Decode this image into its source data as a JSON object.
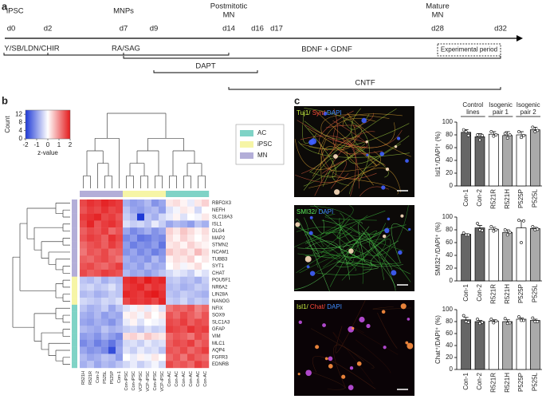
{
  "panel_labels": [
    "a",
    "b",
    "c"
  ],
  "timeline": {
    "stages": [
      [
        "iPSC"
      ],
      [
        "MNPs"
      ],
      [
        "Postmitotic",
        "MN"
      ],
      [
        "Mature",
        "MN"
      ]
    ],
    "days": [
      "d0",
      "d2",
      "d7",
      "d9",
      "d14",
      "d16",
      "d17",
      "d28",
      "d32"
    ],
    "treatments": [
      "Y/SB/LDN/CHIR",
      "RA/SAG",
      "BDNF + GDNF",
      "DAPT",
      "CNTF"
    ],
    "experimental_period": "Experimental period"
  },
  "micrographs": [
    [
      {
        "text": "Tuj1/",
        "color": "#c8f040"
      },
      {
        "text": " Syn/",
        "color": "#ff4a3a"
      },
      {
        "text": " DAPI",
        "color": "#3f8cff"
      }
    ],
    [
      {
        "text": "SMI32/",
        "color": "#5cf05c"
      },
      {
        "text": " DAPI",
        "color": "#3f8cff"
      }
    ],
    [
      {
        "text": "Isl1/",
        "color": "#c8f040"
      },
      {
        "text": " Chat/",
        "color": "#ff4a3a"
      },
      {
        "text": " DAPI",
        "color": "#3f8cff"
      }
    ]
  ],
  "chart_data": [
    {
      "type": "heatmap",
      "ylabel": "Count",
      "xlabel": "z-value",
      "zlim": [
        -2,
        2
      ],
      "xticks": [
        -2,
        -1,
        0,
        1,
        2
      ],
      "countlim": [
        0,
        14
      ],
      "yticks": [
        0,
        4,
        8,
        12
      ],
      "colormap": [
        "#1f3ad6",
        "#ffffff",
        "#e41a1c"
      ],
      "groups": [
        {
          "name": "AC",
          "color": "#7fd3c6"
        },
        {
          "name": "iPSC",
          "color": "#f6f5a6"
        },
        {
          "name": "MN",
          "color": "#b3aed8"
        }
      ],
      "columns": [
        "R521H",
        "R521R",
        "Con-2",
        "P525L",
        "P525P",
        "Con-1",
        "Con-iPSC",
        "Con-iPSC",
        "VCP-iPSC",
        "VCP-iPSC",
        "Con-iPSC",
        "VCP-iPSC",
        "Con-AC",
        "Con-AC",
        "Con-AC",
        "Con-AC",
        "Con-AC",
        "Con-AC"
      ],
      "column_groups": [
        "MN",
        "MN",
        "MN",
        "MN",
        "MN",
        "MN",
        "iPSC",
        "iPSC",
        "iPSC",
        "iPSC",
        "iPSC",
        "iPSC",
        "AC",
        "AC",
        "AC",
        "AC",
        "AC",
        "AC"
      ],
      "rows": [
        "RBFOX3",
        "NEFH",
        "SLC18A3",
        "ISL1",
        "DLG4",
        "MAP2",
        "STMN2",
        "NCAM1",
        "TUBB3",
        "SYT1",
        "CHAT",
        "POU5F1",
        "NR6A2",
        "LIN28A",
        "NANOG",
        "NFIX",
        "SOX9",
        "SLC1A3",
        "GFAP",
        "VIM",
        "MLC1",
        "AQP4",
        "FGFR3",
        "EDNRB"
      ],
      "row_groups": [
        "MN",
        "MN",
        "MN",
        "MN",
        "MN",
        "MN",
        "MN",
        "MN",
        "MN",
        "MN",
        "MN",
        "iPSC",
        "iPSC",
        "iPSC",
        "iPSC",
        "AC",
        "AC",
        "AC",
        "AC",
        "AC",
        "AC",
        "AC",
        "AC",
        "AC"
      ],
      "values": [
        [
          1.6,
          1.8,
          1.7,
          1.9,
          1.8,
          1.7,
          -0.8,
          -1.0,
          -0.9,
          -0.7,
          -1.1,
          -0.9,
          0.2,
          0.3,
          0.1,
          -0.2,
          0.2,
          0.4
        ],
        [
          1.5,
          1.7,
          1.6,
          1.8,
          1.6,
          1.7,
          -0.6,
          -0.9,
          -1.0,
          -0.8,
          -0.7,
          -1.0,
          -0.3,
          -0.1,
          0.2,
          0.1,
          -0.4,
          0.0
        ],
        [
          1.7,
          1.8,
          1.9,
          1.6,
          1.7,
          1.5,
          -0.5,
          -0.7,
          -2.0,
          -0.6,
          -0.8,
          -0.4,
          -0.2,
          0.1,
          -0.3,
          0.0,
          -0.1,
          0.2
        ],
        [
          1.6,
          1.9,
          1.5,
          1.7,
          1.8,
          1.6,
          -0.3,
          -0.5,
          -0.4,
          -0.6,
          -0.2,
          -0.5,
          -0.9,
          -0.7,
          -0.8,
          -1.0,
          -0.6,
          -0.8
        ],
        [
          1.4,
          1.6,
          1.5,
          1.7,
          1.3,
          1.5,
          -0.9,
          -1.2,
          -1.0,
          -0.8,
          -1.1,
          -0.9,
          0.4,
          0.2,
          0.5,
          0.3,
          0.1,
          0.3
        ],
        [
          1.5,
          1.7,
          1.6,
          1.4,
          1.8,
          1.6,
          -1.2,
          -1.0,
          -1.4,
          -1.3,
          -1.1,
          -1.2,
          0.3,
          0.1,
          0.4,
          0.2,
          0.0,
          0.2
        ],
        [
          1.3,
          1.5,
          1.6,
          1.4,
          1.7,
          1.5,
          -1.0,
          -1.3,
          -1.1,
          -1.2,
          -1.0,
          -1.4,
          0.2,
          0.3,
          0.1,
          0.4,
          0.2,
          0.1
        ],
        [
          1.2,
          1.5,
          1.4,
          1.6,
          1.3,
          1.4,
          -1.1,
          -0.9,
          -1.2,
          -1.0,
          -1.3,
          -1.1,
          0.5,
          0.3,
          0.4,
          0.2,
          0.6,
          0.3
        ],
        [
          1.4,
          1.3,
          1.5,
          1.6,
          1.4,
          1.2,
          -0.8,
          -1.0,
          -0.9,
          -1.1,
          -0.7,
          -1.0,
          0.1,
          0.3,
          0.2,
          0.4,
          0.0,
          0.2
        ],
        [
          1.5,
          1.6,
          1.4,
          1.3,
          1.5,
          1.7,
          -0.9,
          -0.8,
          -1.0,
          -0.7,
          -0.9,
          -0.8,
          0.0,
          0.2,
          -0.1,
          0.1,
          0.3,
          0.0
        ],
        [
          1.6,
          1.4,
          1.5,
          1.7,
          1.6,
          1.5,
          -0.7,
          -0.9,
          -0.8,
          -1.0,
          -0.8,
          -0.6,
          -0.4,
          -0.2,
          -0.3,
          -0.5,
          -0.1,
          -0.3
        ],
        [
          -0.6,
          -0.7,
          -0.5,
          -0.8,
          -0.6,
          -0.7,
          1.8,
          1.9,
          1.7,
          2.0,
          1.8,
          1.9,
          -0.6,
          -0.5,
          -0.7,
          -0.6,
          -0.8,
          -0.5
        ],
        [
          -0.5,
          -0.4,
          -0.6,
          -0.5,
          -0.3,
          -0.6,
          1.7,
          1.8,
          1.9,
          1.6,
          1.8,
          1.7,
          -0.7,
          -0.6,
          -0.8,
          -0.7,
          -0.5,
          -0.6
        ],
        [
          -0.7,
          -0.6,
          -0.8,
          -0.7,
          -0.5,
          -0.6,
          1.9,
          1.8,
          1.7,
          1.9,
          2.0,
          1.8,
          -0.6,
          -0.7,
          -0.5,
          -0.6,
          -0.7,
          -0.8
        ],
        [
          -0.4,
          -0.5,
          -0.6,
          -0.4,
          -0.5,
          -0.3,
          1.6,
          1.8,
          1.7,
          1.8,
          1.6,
          1.9,
          -0.5,
          -0.6,
          -0.4,
          -0.7,
          -0.5,
          -0.6
        ],
        [
          -0.6,
          -0.8,
          -0.7,
          -0.5,
          -0.9,
          -0.6,
          -0.3,
          -0.1,
          0.2,
          -0.2,
          0.1,
          -0.3,
          1.2,
          1.4,
          1.3,
          1.5,
          1.1,
          1.3
        ],
        [
          -0.8,
          -0.9,
          -0.7,
          -1.0,
          -0.8,
          -0.9,
          0.1,
          0.2,
          -0.1,
          0.3,
          0.0,
          0.2,
          1.5,
          1.3,
          1.6,
          1.4,
          1.2,
          1.5
        ],
        [
          -0.9,
          -1.0,
          -0.8,
          -0.9,
          -1.1,
          -0.8,
          -0.2,
          0.1,
          -0.3,
          0.0,
          -0.1,
          -0.2,
          1.6,
          1.5,
          1.7,
          1.4,
          1.6,
          1.5
        ],
        [
          -0.7,
          -0.8,
          -0.9,
          -0.6,
          -0.8,
          -0.7,
          -0.5,
          -0.4,
          -0.6,
          -0.3,
          -0.5,
          -0.4,
          1.7,
          1.6,
          1.5,
          1.8,
          1.6,
          1.7
        ],
        [
          -1.0,
          -0.9,
          -1.1,
          -0.8,
          -1.0,
          -1.2,
          0.3,
          0.4,
          0.2,
          0.5,
          0.3,
          0.2,
          1.3,
          1.5,
          1.4,
          1.2,
          1.6,
          1.4
        ],
        [
          -1.2,
          -1.0,
          -1.3,
          -1.1,
          -1.4,
          -1.0,
          -0.4,
          -0.3,
          -0.5,
          -0.2,
          -0.4,
          -0.3,
          1.4,
          1.6,
          1.5,
          1.7,
          1.3,
          1.5
        ],
        [
          -0.9,
          -1.1,
          -1.0,
          -1.2,
          -1.8,
          -0.9,
          -0.3,
          -0.5,
          -0.2,
          -0.4,
          -0.3,
          -0.6,
          1.5,
          1.4,
          1.6,
          1.3,
          1.5,
          1.7
        ],
        [
          -0.7,
          -0.9,
          -0.8,
          -0.6,
          -0.7,
          -1.0,
          0.0,
          -0.2,
          0.1,
          -0.1,
          0.2,
          0.0,
          1.3,
          1.5,
          1.2,
          1.6,
          1.4,
          1.3
        ],
        [
          -0.8,
          -0.6,
          -0.9,
          -0.7,
          -0.8,
          -0.6,
          -0.4,
          -0.2,
          -0.5,
          -0.3,
          -0.1,
          -0.4,
          1.6,
          1.4,
          1.5,
          1.3,
          1.7,
          1.5
        ]
      ]
    },
    {
      "type": "bar",
      "ylabel": "Isl1⁺/DAPI⁺ (%)",
      "groups": [
        [
          "Control",
          "lines"
        ],
        [
          "Isogenic",
          "pair 1"
        ],
        [
          "Isogenic",
          "pair 2"
        ]
      ],
      "categories": [
        "Con-1",
        "Con-2",
        "R521R",
        "R521H",
        "P525P",
        "P525L"
      ],
      "colors": [
        "#666666",
        "#666666",
        "#ffffff",
        "#aaaaaa",
        "#ffffff",
        "#aaaaaa"
      ],
      "values": [
        84,
        77,
        81,
        79,
        80,
        88
      ],
      "errors": [
        4,
        5,
        4,
        6,
        5,
        4
      ],
      "points": [
        [
          88,
          85,
          79
        ],
        [
          80,
          72,
          79
        ],
        [
          85,
          78,
          80
        ],
        [
          82,
          75,
          80
        ],
        [
          85,
          76,
          79
        ],
        [
          92,
          85,
          87
        ]
      ],
      "ylim": [
        0,
        100
      ],
      "yticks": [
        0,
        20,
        40,
        60,
        80,
        100
      ]
    },
    {
      "type": "bar",
      "ylabel": "SMI32⁺/DAPI⁺ (%)",
      "categories": [
        "Con-1",
        "Con-2",
        "R521R",
        "R521H",
        "P525P",
        "P525L"
      ],
      "colors": [
        "#666666",
        "#666666",
        "#ffffff",
        "#aaaaaa",
        "#ffffff",
        "#aaaaaa"
      ],
      "values": [
        73,
        83,
        81,
        76,
        83,
        82
      ],
      "errors": [
        1,
        4,
        3,
        4,
        11,
        2
      ],
      "points": [
        [
          75,
          72,
          72
        ],
        [
          90,
          80,
          79
        ],
        [
          85,
          78,
          80
        ],
        [
          80,
          72,
          76
        ],
        [
          95,
          60,
          94
        ],
        [
          85,
          80,
          81
        ]
      ],
      "ylim": [
        0,
        100
      ],
      "yticks": [
        0,
        20,
        40,
        60,
        80,
        100
      ]
    },
    {
      "type": "bar",
      "ylabel": "Chat⁺/DAPI⁺ (%)",
      "categories": [
        "Con-1",
        "Con-2",
        "R521R",
        "R521H",
        "P525P",
        "P525L"
      ],
      "colors": [
        "#666666",
        "#666666",
        "#ffffff",
        "#aaaaaa",
        "#ffffff",
        "#aaaaaa"
      ],
      "values": [
        83,
        80,
        81,
        80,
        84,
        82
      ],
      "errors": [
        4,
        2,
        2,
        3,
        2,
        2
      ],
      "points": [
        [
          90,
          80,
          79
        ],
        [
          84,
          77,
          79
        ],
        [
          84,
          78,
          81
        ],
        [
          85,
          77,
          78
        ],
        [
          88,
          82,
          82
        ],
        [
          86,
          80,
          80
        ]
      ],
      "ylim": [
        0,
        100
      ],
      "yticks": [
        0,
        20,
        40,
        60,
        80,
        100
      ]
    }
  ]
}
